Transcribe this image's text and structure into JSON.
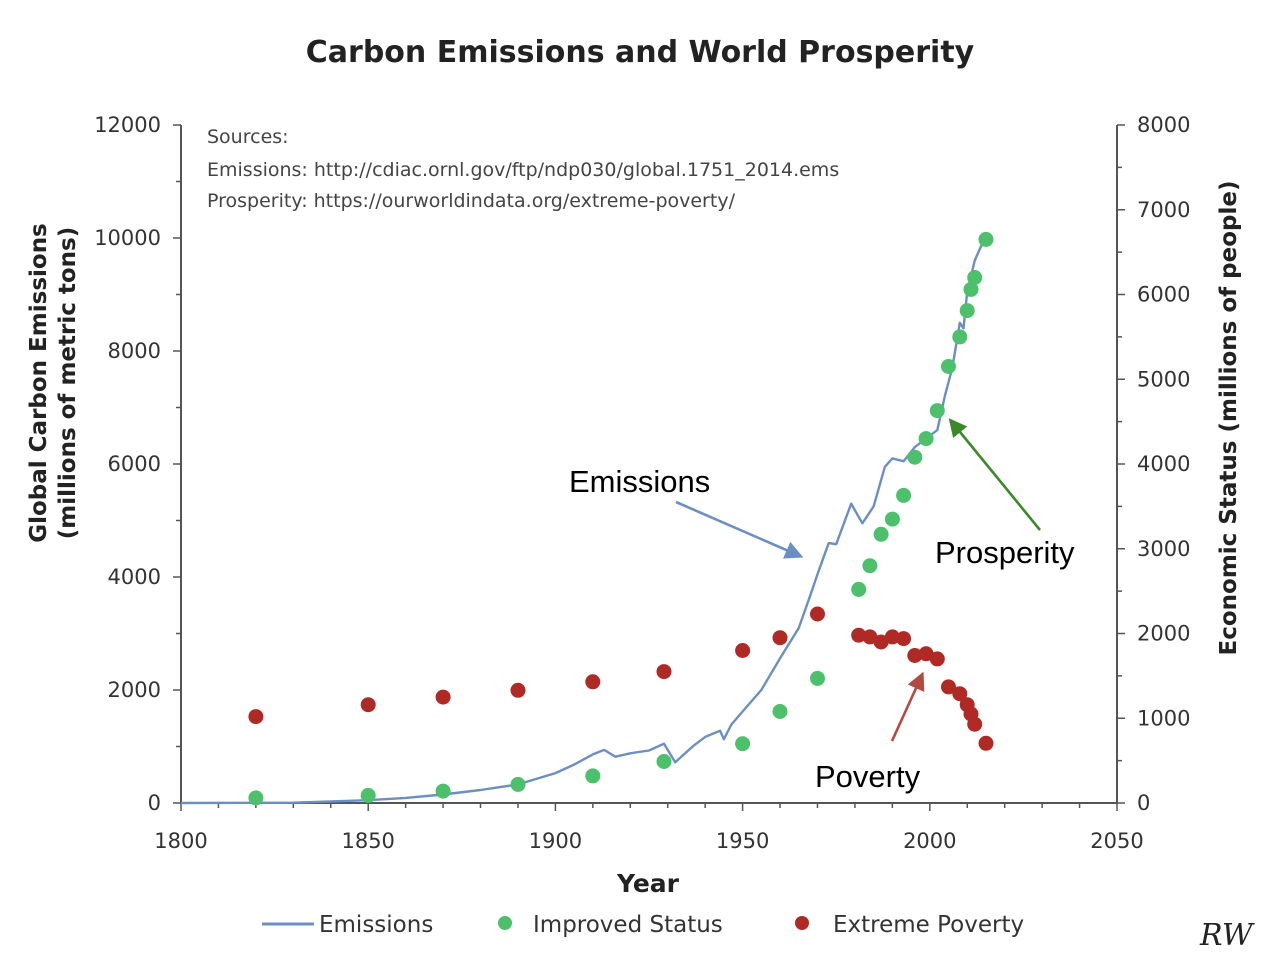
{
  "chart_data": {
    "type": "line",
    "title": "Carbon Emissions and World Prosperity",
    "xlabel": "Year",
    "ylabel_left": "Global Carbon Emissions (millions of metric tons)",
    "ylabel_left_lines": [
      "Global Carbon Emissions",
      "(millions of metric tons)"
    ],
    "ylabel_right": "Economic Status (millions of people)",
    "xlim": [
      1800,
      2050
    ],
    "ylim_left": [
      0,
      12000
    ],
    "ylim_right": [
      0,
      8000
    ],
    "x_ticks": [
      1800,
      1850,
      1900,
      1950,
      2000,
      2050
    ],
    "y_ticks_left": [
      0,
      2000,
      4000,
      6000,
      8000,
      10000,
      12000
    ],
    "y_ticks_right": [
      0,
      1000,
      2000,
      3000,
      4000,
      5000,
      6000,
      7000,
      8000
    ],
    "sources": [
      "Sources:",
      "Emissions: http://cdiac.ornl.gov/ftp/ndp030/global.1751_2014.ems",
      "Prosperity: https://ourworldindata.org/extreme-poverty/"
    ],
    "series": [
      {
        "name": "Emissions",
        "axis": "left",
        "style": "line",
        "color": "#6b8fc4",
        "points": [
          [
            1800,
            0
          ],
          [
            1830,
            5
          ],
          [
            1850,
            50
          ],
          [
            1860,
            90
          ],
          [
            1870,
            150
          ],
          [
            1880,
            230
          ],
          [
            1890,
            330
          ],
          [
            1900,
            530
          ],
          [
            1905,
            680
          ],
          [
            1910,
            860
          ],
          [
            1913,
            940
          ],
          [
            1916,
            820
          ],
          [
            1920,
            880
          ],
          [
            1925,
            930
          ],
          [
            1929,
            1050
          ],
          [
            1932,
            720
          ],
          [
            1937,
            1020
          ],
          [
            1940,
            1170
          ],
          [
            1944,
            1280
          ],
          [
            1945,
            1130
          ],
          [
            1947,
            1390
          ],
          [
            1950,
            1620
          ],
          [
            1955,
            2000
          ],
          [
            1960,
            2560
          ],
          [
            1965,
            3100
          ],
          [
            1968,
            3660
          ],
          [
            1970,
            4050
          ],
          [
            1972,
            4420
          ],
          [
            1973,
            4600
          ],
          [
            1975,
            4580
          ],
          [
            1979,
            5300
          ],
          [
            1980,
            5180
          ],
          [
            1982,
            4950
          ],
          [
            1985,
            5250
          ],
          [
            1988,
            5950
          ],
          [
            1990,
            6100
          ],
          [
            1993,
            6050
          ],
          [
            1996,
            6300
          ],
          [
            1999,
            6450
          ],
          [
            2002,
            6600
          ],
          [
            2004,
            7200
          ],
          [
            2006,
            7700
          ],
          [
            2008,
            8500
          ],
          [
            2009,
            8400
          ],
          [
            2010,
            9050
          ],
          [
            2012,
            9600
          ],
          [
            2014,
            9900
          ]
        ]
      },
      {
        "name": "Improved Status",
        "axis": "right",
        "style": "scatter",
        "color": "#4cc06a",
        "points": [
          [
            1820,
            60
          ],
          [
            1850,
            90
          ],
          [
            1870,
            140
          ],
          [
            1890,
            220
          ],
          [
            1910,
            320
          ],
          [
            1929,
            490
          ],
          [
            1950,
            700
          ],
          [
            1960,
            1080
          ],
          [
            1970,
            1470
          ],
          [
            1981,
            2520
          ],
          [
            1984,
            2800
          ],
          [
            1987,
            3170
          ],
          [
            1990,
            3350
          ],
          [
            1993,
            3630
          ],
          [
            1996,
            4080
          ],
          [
            1999,
            4300
          ],
          [
            2002,
            4630
          ],
          [
            2005,
            5150
          ],
          [
            2008,
            5500
          ],
          [
            2010,
            5810
          ],
          [
            2011,
            6060
          ],
          [
            2012,
            6200
          ],
          [
            2015,
            6650
          ]
        ]
      },
      {
        "name": "Extreme Poverty",
        "axis": "right",
        "style": "scatter",
        "color": "#b02a25",
        "points": [
          [
            1820,
            1020
          ],
          [
            1850,
            1160
          ],
          [
            1870,
            1250
          ],
          [
            1890,
            1330
          ],
          [
            1910,
            1430
          ],
          [
            1929,
            1550
          ],
          [
            1950,
            1800
          ],
          [
            1960,
            1950
          ],
          [
            1970,
            2230
          ],
          [
            1981,
            1980
          ],
          [
            1984,
            1960
          ],
          [
            1987,
            1900
          ],
          [
            1990,
            1960
          ],
          [
            1993,
            1940
          ],
          [
            1996,
            1740
          ],
          [
            1999,
            1760
          ],
          [
            2002,
            1700
          ],
          [
            2005,
            1370
          ],
          [
            2008,
            1290
          ],
          [
            2010,
            1160
          ],
          [
            2011,
            1050
          ],
          [
            2012,
            930
          ],
          [
            2015,
            705
          ]
        ]
      }
    ],
    "annotations": [
      {
        "text": "Emissions",
        "target_series": "Emissions",
        "color": "#6b8fc4"
      },
      {
        "text": "Prosperity",
        "target_series": "Improved Status",
        "color": "#3a8a2a"
      },
      {
        "text": "Poverty",
        "target_series": "Extreme Poverty",
        "color": "#b24a42"
      }
    ],
    "legend": {
      "placement": "bottom",
      "entries": [
        "Emissions",
        "Improved Status",
        "Extreme Poverty"
      ]
    },
    "grid": false
  },
  "signature": "RW"
}
